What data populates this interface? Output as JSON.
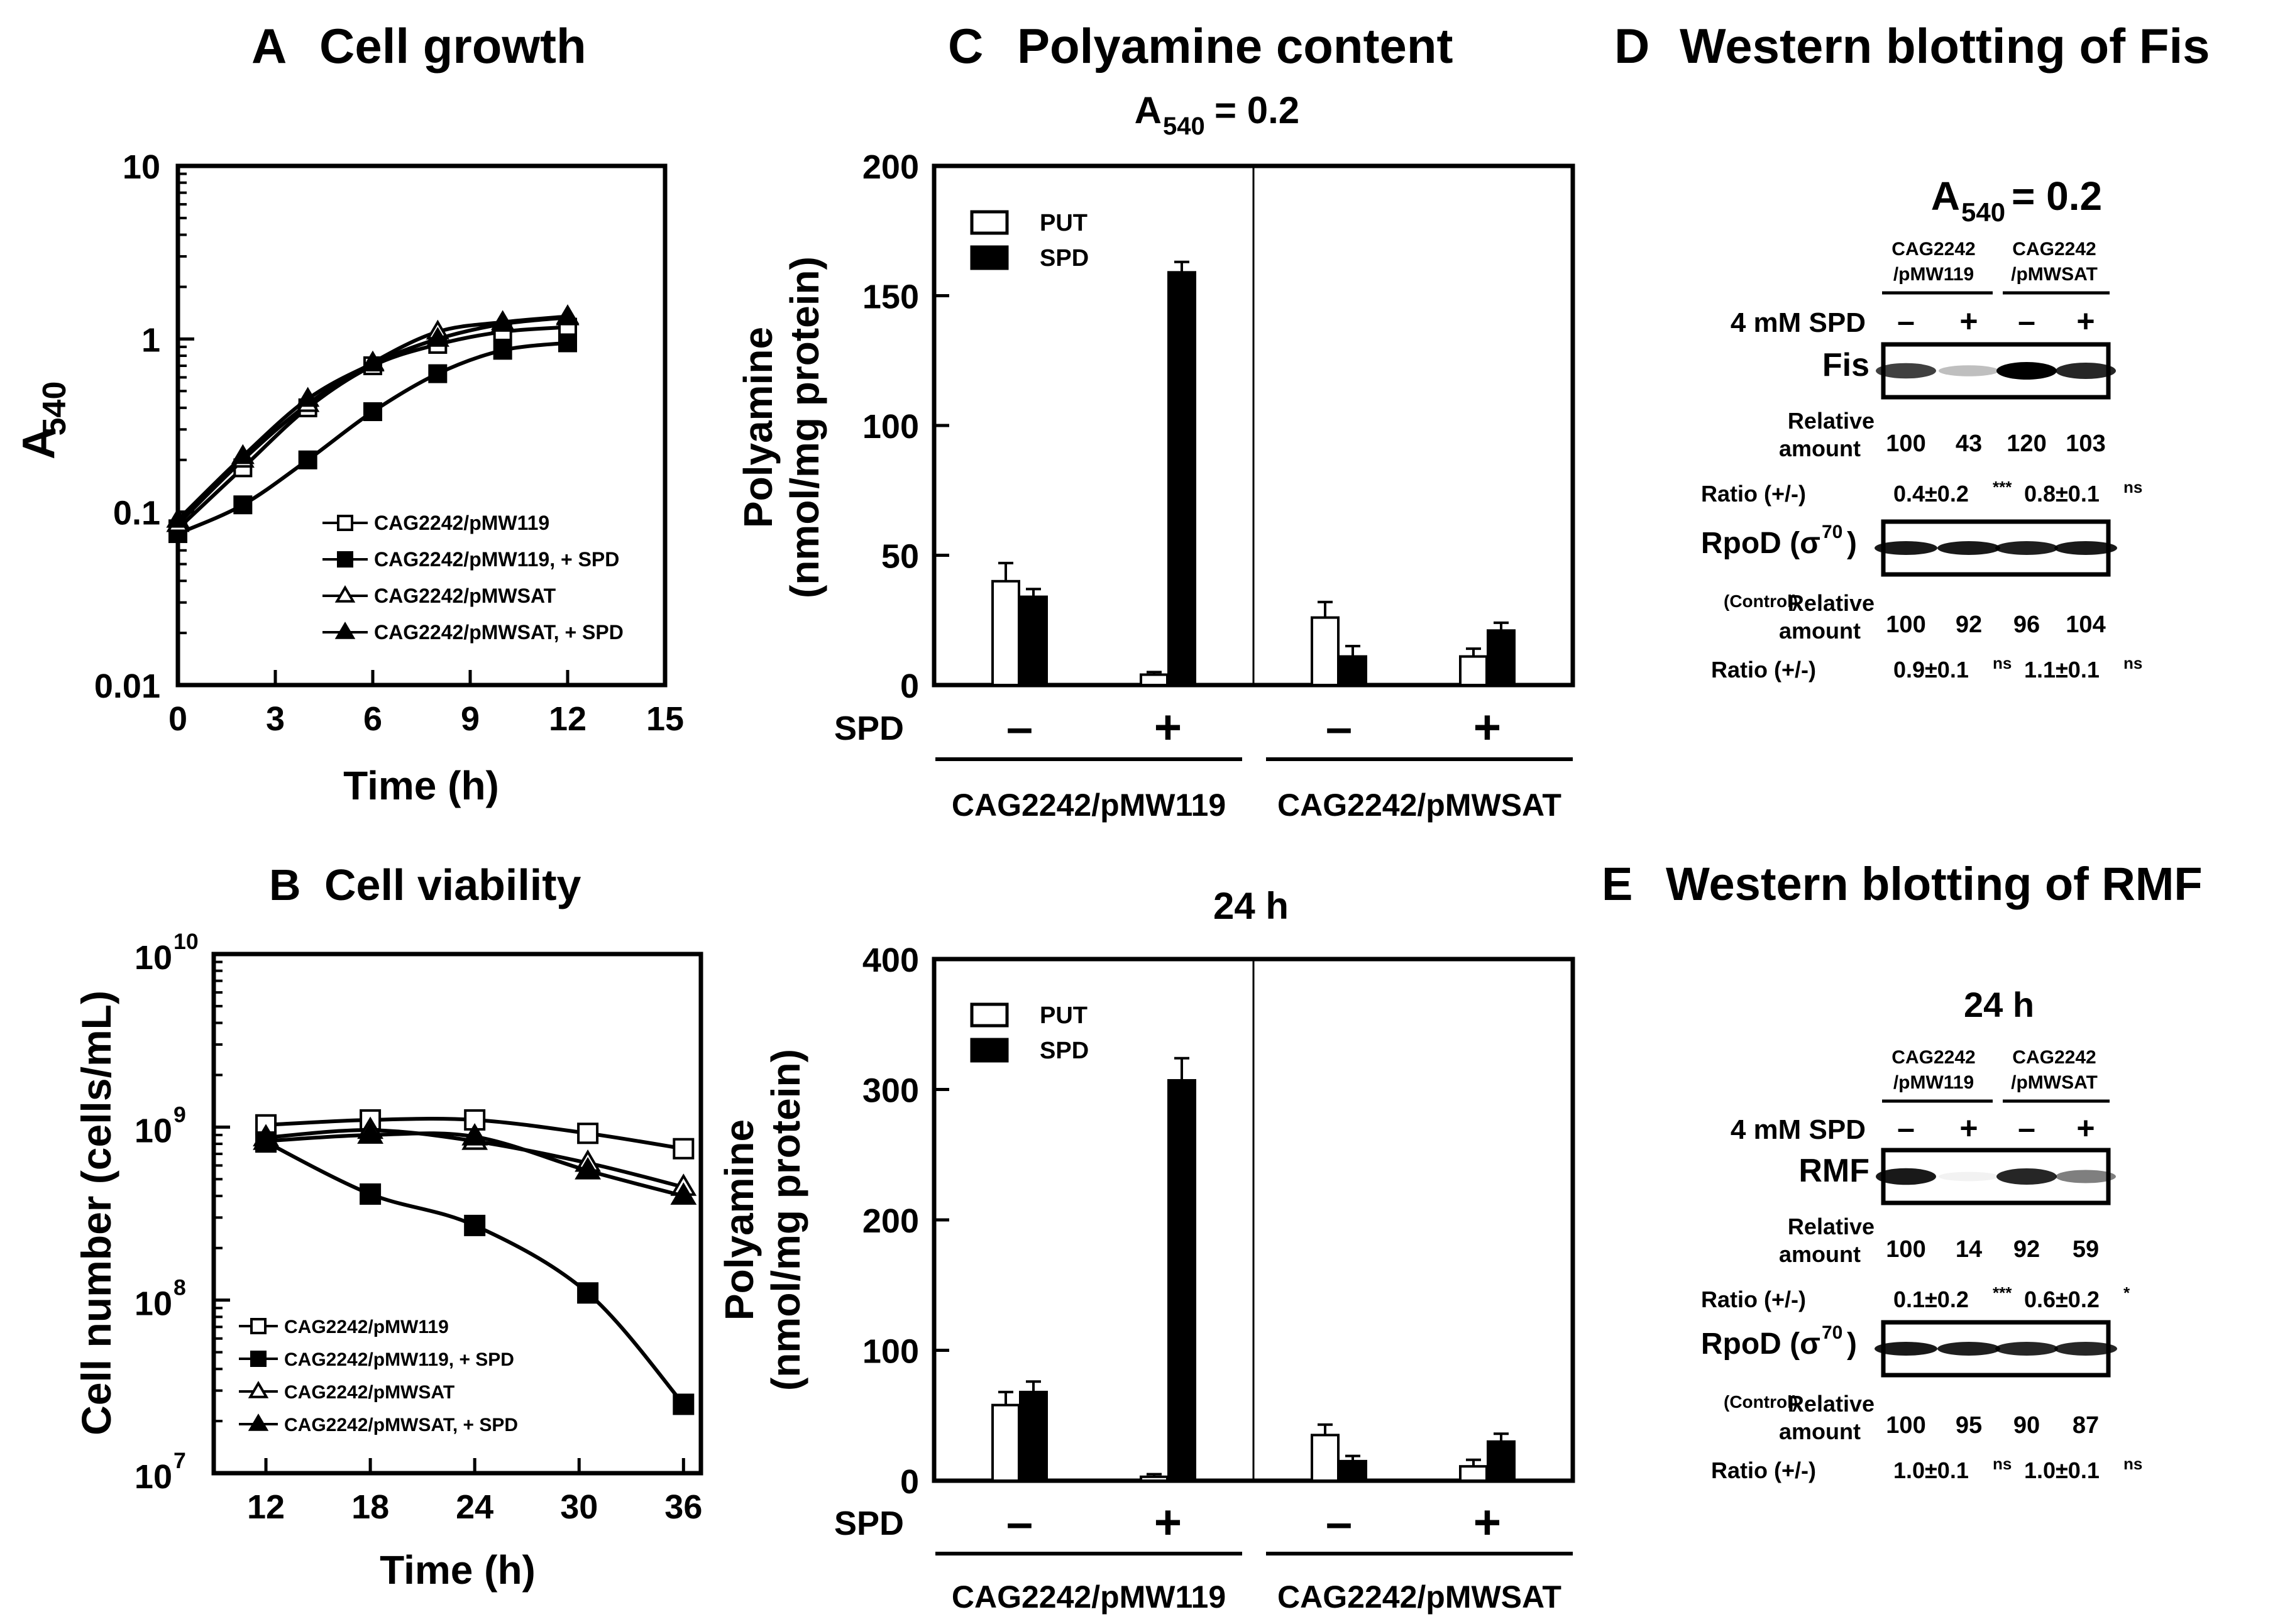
{
  "panels": {
    "A": {
      "letter": "A",
      "title": "Cell growth"
    },
    "B": {
      "letter": "B",
      "title": "Cell viability"
    },
    "C": {
      "letter": "C",
      "title": "Polyamine content"
    },
    "D": {
      "letter": "D",
      "title": "Western blotting of Fis"
    },
    "E": {
      "letter": "E",
      "title": "Western blotting of RMF"
    }
  },
  "chart_data": [
    {
      "id": "A",
      "type": "line",
      "title": "Cell growth",
      "xlabel": "Time (h)",
      "ylabel_main": "A",
      "ylabel_sub": "540",
      "xlim": [
        0,
        15
      ],
      "ylim": [
        0.01,
        10
      ],
      "yscale": "log",
      "xticks": [
        0,
        3,
        6,
        9,
        12,
        15
      ],
      "yticks": [
        {
          "v": 0.01,
          "label": "0.01"
        },
        {
          "v": 0.1,
          "label": "0.1"
        },
        {
          "v": 1,
          "label": "1"
        },
        {
          "v": 10,
          "label": "10"
        }
      ],
      "series": [
        {
          "name": "CAG2242/pMW119",
          "marker": "open-square",
          "x": [
            0,
            2,
            4,
            6,
            8,
            10,
            12
          ],
          "y": [
            0.08,
            0.18,
            0.4,
            0.7,
            0.93,
            1.1,
            1.17
          ]
        },
        {
          "name": "CAG2242/pMW119, + SPD",
          "marker": "filled-square",
          "x": [
            0,
            2,
            4,
            6,
            8,
            10,
            12
          ],
          "y": [
            0.075,
            0.11,
            0.2,
            0.38,
            0.63,
            0.86,
            0.95
          ]
        },
        {
          "name": "CAG2242/pMWSAT",
          "marker": "open-triangle",
          "x": [
            0,
            2,
            4,
            6,
            8,
            10,
            12
          ],
          "y": [
            0.085,
            0.2,
            0.42,
            0.73,
            1.1,
            1.25,
            1.35
          ]
        },
        {
          "name": "CAG2242/pMWSAT, + SPD",
          "marker": "filled-triangle",
          "x": [
            0,
            2,
            4,
            6,
            8,
            10,
            12
          ],
          "y": [
            0.09,
            0.21,
            0.45,
            0.72,
            1.0,
            1.22,
            1.33
          ]
        }
      ]
    },
    {
      "id": "B",
      "type": "line",
      "title": "Cell viability",
      "xlabel": "Time (h)",
      "ylabel": "Cell number (cells/mL)",
      "xlim": [
        9,
        37
      ],
      "ylim": [
        10000000,
        10000000000
      ],
      "yscale": "log",
      "xticks": [
        12,
        18,
        24,
        30,
        36
      ],
      "yticks": [
        {
          "v": 10000000,
          "exp": "7"
        },
        {
          "v": 100000000,
          "exp": "8"
        },
        {
          "v": 1000000000,
          "exp": "9"
        },
        {
          "v": 10000000000,
          "exp": "10"
        }
      ],
      "series": [
        {
          "name": "CAG2242/pMW119",
          "marker": "open-square",
          "x": [
            12,
            18,
            24,
            30.5,
            36
          ],
          "y": [
            1030000000,
            1100000000,
            1100000000,
            920000000,
            750000000
          ]
        },
        {
          "name": "CAG2242/pMW119, + SPD",
          "marker": "filled-square",
          "x": [
            12,
            18,
            24,
            30.5,
            36
          ],
          "y": [
            820000000,
            410000000,
            270000000,
            110000000,
            25000000
          ]
        },
        {
          "name": "CAG2242/pMWSAT",
          "marker": "open-triangle",
          "x": [
            12,
            18,
            24,
            30.5,
            36
          ],
          "y": [
            870000000,
            960000000,
            830000000,
            620000000,
            450000000
          ]
        },
        {
          "name": "CAG2242/pMWSAT, + SPD",
          "marker": "filled-triangle",
          "x": [
            12,
            18,
            24,
            30.5,
            36
          ],
          "y": [
            830000000,
            900000000,
            880000000,
            560000000,
            400000000
          ]
        }
      ]
    },
    {
      "id": "C-top",
      "type": "bar",
      "subtitle_main": "A",
      "subtitle_sub": "540",
      "subtitle_rest": " = 0.2",
      "ylabel_1": "Polyamine",
      "ylabel_2": "(nmol/mg protein)",
      "ylim": [
        0,
        200
      ],
      "yticks": [
        0,
        50,
        100,
        150,
        200
      ],
      "legend": [
        "PUT",
        "SPD"
      ],
      "row_label": "SPD",
      "groups": [
        {
          "spd": "–",
          "PUT": 40,
          "PUT_err": 7,
          "SPD": 34,
          "SPD_err": 3
        },
        {
          "spd": "+",
          "PUT": 4,
          "PUT_err": 1,
          "SPD": 159,
          "SPD_err": 4
        },
        {
          "spd": "–",
          "PUT": 26,
          "PUT_err": 6,
          "SPD": 11,
          "SPD_err": 4
        },
        {
          "spd": "+",
          "PUT": 11,
          "PUT_err": 3,
          "SPD": 21,
          "SPD_err": 3
        }
      ],
      "strains": [
        "CAG2242/pMW119",
        "CAG2242/pMWSAT"
      ]
    },
    {
      "id": "C-bottom",
      "type": "bar",
      "subtitle": "24 h",
      "ylabel_1": "Polyamine",
      "ylabel_2": "(nmol/mg protein)",
      "ylim": [
        0,
        400
      ],
      "yticks": [
        0,
        100,
        200,
        300,
        400
      ],
      "legend": [
        "PUT",
        "SPD"
      ],
      "row_label": "SPD",
      "groups": [
        {
          "spd": "–",
          "PUT": 58,
          "PUT_err": 10,
          "SPD": 68,
          "SPD_err": 8
        },
        {
          "spd": "+",
          "PUT": 3,
          "PUT_err": 2,
          "SPD": 307,
          "SPD_err": 17
        },
        {
          "spd": "–",
          "PUT": 35,
          "PUT_err": 8,
          "SPD": 15,
          "SPD_err": 4
        },
        {
          "spd": "+",
          "PUT": 11,
          "PUT_err": 5,
          "SPD": 30,
          "SPD_err": 6
        }
      ],
      "strains": [
        "CAG2242/pMW119",
        "CAG2242/pMWSAT"
      ]
    }
  ],
  "blots": {
    "D": {
      "condition_main": "A",
      "condition_sub": "540",
      "condition_rest": " = 0.2",
      "strain1_l1": "CAG2242",
      "strain1_l2": "/pMW119",
      "strain2_l1": "CAG2242",
      "strain2_l2": "/pMWSAT",
      "spd_label": "4 mM SPD",
      "signs": [
        "–",
        "+",
        "–",
        "+"
      ],
      "target": {
        "name": "Fis",
        "intensity": [
          0.75,
          0.25,
          1.0,
          0.85
        ]
      },
      "rel_label_1": "Relative",
      "rel_label_2": "amount",
      "target_values": [
        "100",
        "43",
        "120",
        "103"
      ],
      "target_ratio_label": "Ratio (+/-)",
      "target_ratio_1": "0.4±0.2",
      "target_ratio_1_sup": "***",
      "target_ratio_2": "0.8±0.1",
      "target_ratio_2_sup": "ns",
      "control_name": "RpoD (σ",
      "control_sup": "70",
      "control_close": ")",
      "control_intensity": [
        0.9,
        0.9,
        0.88,
        0.9
      ],
      "control_tag": "(Control)",
      "control_values": [
        "100",
        "92",
        "96",
        "104"
      ],
      "control_ratio_label": "Ratio (+/-)",
      "control_ratio_1": "0.9±0.1",
      "control_ratio_1_sup": "ns",
      "control_ratio_2": "1.1±0.1",
      "control_ratio_2_sup": "ns"
    },
    "E": {
      "condition": "24 h",
      "strain1_l1": "CAG2242",
      "strain1_l2": "/pMW119",
      "strain2_l1": "CAG2242",
      "strain2_l2": "/pMWSAT",
      "spd_label": "4 mM SPD",
      "signs": [
        "–",
        "+",
        "–",
        "+"
      ],
      "target": {
        "name": "RMF",
        "intensity": [
          0.9,
          0.05,
          0.85,
          0.5
        ]
      },
      "rel_label_1": "Relative",
      "rel_label_2": "amount",
      "target_values": [
        "100",
        "14",
        "92",
        "59"
      ],
      "target_ratio_label": "Ratio (+/-)",
      "target_ratio_1": "0.1±0.2",
      "target_ratio_1_sup": "***",
      "target_ratio_2": "0.6±0.2",
      "target_ratio_2_sup": "*",
      "control_name": "RpoD (σ",
      "control_sup": "70",
      "control_close": ")",
      "control_intensity": [
        0.9,
        0.88,
        0.85,
        0.85
      ],
      "control_tag": "(Control)",
      "control_values": [
        "100",
        "95",
        "90",
        "87"
      ],
      "control_ratio_label": "Ratio (+/-)",
      "control_ratio_1": "1.0±0.1",
      "control_ratio_1_sup": "ns",
      "control_ratio_2": "1.0±0.1",
      "control_ratio_2_sup": "ns"
    }
  }
}
